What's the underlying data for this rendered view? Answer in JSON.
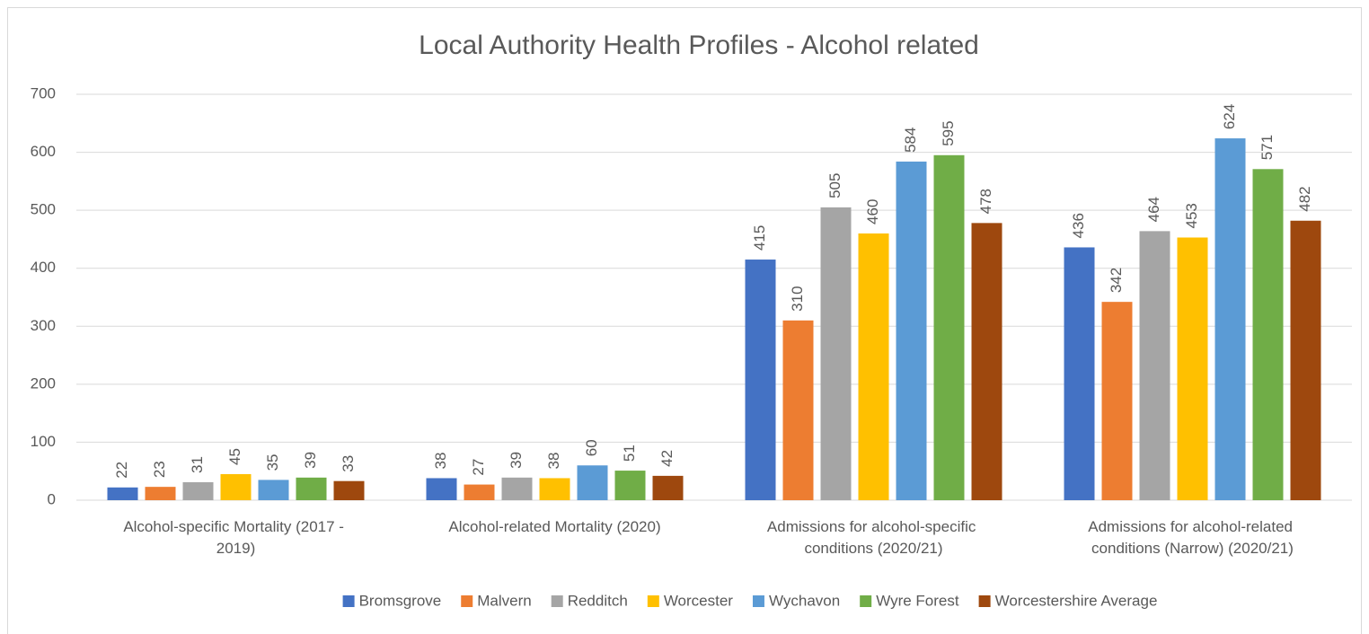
{
  "chart_data": {
    "type": "bar",
    "title": "Local Authority Health Profiles - Alcohol related",
    "categories": [
      "Alcohol-specific Mortality (2017 - 2019)",
      "Alcohol-related Mortality (2020)",
      "Admissions for alcohol-specific conditions (2020/21)",
      "Admissions for alcohol-related conditions (Narrow) (2020/21)"
    ],
    "series": [
      {
        "name": "Bromsgrove",
        "color": "#4472c4",
        "values": [
          22,
          38,
          415,
          436
        ]
      },
      {
        "name": "Malvern",
        "color": "#ed7d31",
        "values": [
          23,
          27,
          310,
          342
        ]
      },
      {
        "name": "Redditch",
        "color": "#a5a5a5",
        "values": [
          31,
          39,
          505,
          464
        ]
      },
      {
        "name": "Worcester",
        "color": "#ffc000",
        "values": [
          45,
          38,
          460,
          453
        ]
      },
      {
        "name": "Wychavon",
        "color": "#5b9bd5",
        "values": [
          35,
          60,
          584,
          624
        ]
      },
      {
        "name": "Wyre Forest",
        "color": "#70ad47",
        "values": [
          39,
          51,
          595,
          571
        ]
      },
      {
        "name": "Worcestershire Average",
        "color": "#9e480e",
        "values": [
          33,
          42,
          478,
          482
        ]
      }
    ],
    "ylim": [
      0,
      700
    ],
    "yticks": [
      0,
      100,
      200,
      300,
      400,
      500,
      600,
      700
    ],
    "grid": true,
    "legend": "bottom"
  }
}
